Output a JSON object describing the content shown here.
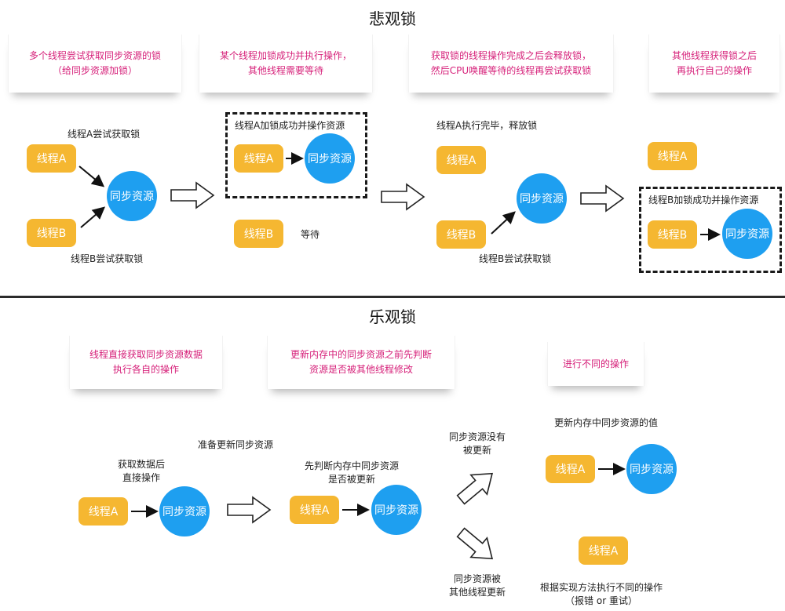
{
  "pessimistic": {
    "title": "悲观锁",
    "notes": [
      "多个线程尝试获取同步资源的锁\n（给同步资源加锁）",
      "某个线程加锁成功并执行操作，\n其他线程需要等待",
      "获取锁的线程操作完成之后会释放锁，\n然后CPU唤醒等待的线程再尝试获取锁",
      "其他线程获得锁之后\n再执行自己的操作"
    ],
    "step1": {
      "label_top": "线程A尝试获取锁",
      "label_bottom": "线程B尝试获取锁",
      "thread_a": "线程A",
      "thread_b": "线程B",
      "resource": "同步资源"
    },
    "step2": {
      "box_label": "线程A加锁成功并操作资源",
      "thread_a": "线程A",
      "resource": "同步资源",
      "thread_b": "线程B",
      "wait": "等待"
    },
    "step3": {
      "label_top": "线程A执行完毕，释放锁",
      "thread_a": "线程A",
      "thread_b": "线程B",
      "resource": "同步资源",
      "label_bottom": "线程B尝试获取锁"
    },
    "step4": {
      "thread_a": "线程A",
      "box_label": "线程B加锁成功并操作资源",
      "thread_b": "线程B",
      "resource": "同步资源"
    }
  },
  "optimistic": {
    "title": "乐观锁",
    "notes": [
      "线程直接获取同步资源数据\n执行各自的操作",
      "更新内存中的同步资源之前先判断\n资源是否被其他线程修改",
      "进行不同的操作"
    ],
    "step1": {
      "label_prepare": "准备更新同步资源",
      "label": "获取数据后\n直接操作",
      "thread_a": "线程A",
      "resource": "同步资源"
    },
    "step2": {
      "label": "先判断内存中同步资源\n是否被更新",
      "thread_a": "线程A",
      "resource": "同步资源"
    },
    "branch": {
      "not_updated": "同步资源没有\n被更新",
      "updated": "同步资源被\n其他线程更新"
    },
    "result1": {
      "label": "更新内存中同步资源的值",
      "thread_a": "线程A",
      "resource": "同步资源"
    },
    "result2": {
      "thread_a": "线程A",
      "label": "根据实现方法执行不同的操作\n（报错 or 重试）"
    }
  },
  "colors": {
    "thread": "#f5b731",
    "resource": "#1e9ff0",
    "note_text": "#d6217a"
  }
}
